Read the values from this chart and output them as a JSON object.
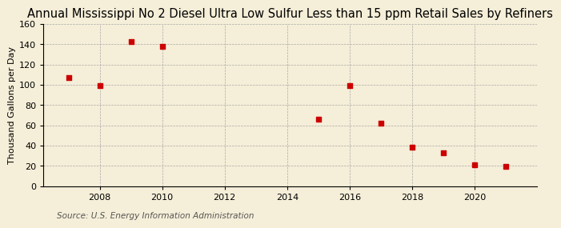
{
  "title": "Annual Mississippi No 2 Diesel Ultra Low Sulfur Less than 15 ppm Retail Sales by Refiners",
  "ylabel": "Thousand Gallons per Day",
  "source": "Source: U.S. Energy Information Administration",
  "x_values": [
    2007,
    2008,
    2009,
    2010,
    2015,
    2016,
    2017,
    2018,
    2019,
    2020,
    2021
  ],
  "y_values": [
    107,
    99,
    143,
    138,
    66,
    99,
    62,
    38,
    33,
    21,
    19
  ],
  "xlim": [
    2006.2,
    2022.0
  ],
  "ylim": [
    0,
    160
  ],
  "yticks": [
    0,
    20,
    40,
    60,
    80,
    100,
    120,
    140,
    160
  ],
  "xticks": [
    2008,
    2010,
    2012,
    2014,
    2016,
    2018,
    2020
  ],
  "marker_color": "#cc0000",
  "marker": "s",
  "marker_size": 4,
  "background_color": "#f5eed8",
  "grid_color": "#aaaaaa",
  "title_fontsize": 10.5,
  "label_fontsize": 8,
  "tick_fontsize": 8,
  "source_fontsize": 7.5
}
